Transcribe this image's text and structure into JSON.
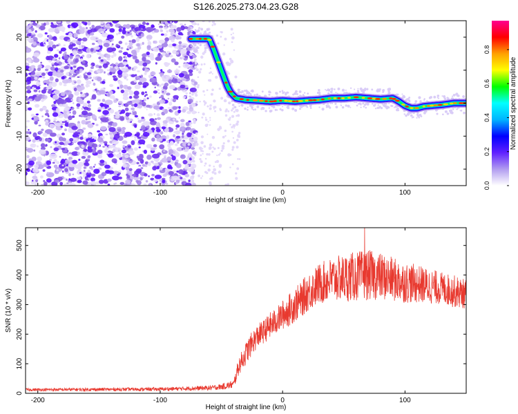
{
  "title": "S126.2025.273.04.23.G28",
  "chart_data": [
    {
      "type": "heatmap",
      "xlabel": "Height of straight line (km)",
      "ylabel": "Frequency (Hz)",
      "xlim": [
        -210,
        150
      ],
      "ylim": [
        -25,
        25
      ],
      "xticks": [
        -200,
        -100,
        0,
        100
      ],
      "yticks": [
        -20,
        -10,
        0,
        10,
        20
      ],
      "colorbar": {
        "label": "Normalized spectral amplitude",
        "range": [
          0.0,
          0.97
        ],
        "ticks": [
          0.0,
          0.2,
          0.4,
          0.6,
          0.8
        ],
        "tick_labels": [
          "0.0",
          "0.2",
          "0.4",
          "0.6",
          "0.8"
        ],
        "colors": [
          "#ffffff",
          "#b19cf0",
          "#6020ff",
          "#0000ff",
          "#00b4ff",
          "#00ffff",
          "#00ff00",
          "#ffff00",
          "#ffa000",
          "#ff0000",
          "#ff0090"
        ]
      },
      "ridge": {
        "x": [
          -75,
          -60,
          -57,
          -52,
          -48,
          -45,
          -42,
          -38,
          -30,
          -20,
          -10,
          0,
          10,
          20,
          30,
          40,
          50,
          60,
          70,
          80,
          90,
          95,
          100,
          105,
          110,
          115,
          120,
          130,
          140,
          150
        ],
        "y": [
          19.5,
          19.5,
          17,
          12,
          8,
          5,
          3,
          1.5,
          1,
          0.8,
          0.5,
          0.8,
          0.5,
          0.8,
          1,
          1.5,
          1.5,
          1.8,
          1.5,
          1.2,
          1.5,
          0.5,
          -0.8,
          -1.5,
          -1.5,
          -1,
          -0.8,
          -0.5,
          0,
          0
        ]
      },
      "noise_region": {
        "x_end": -75
      }
    },
    {
      "type": "line",
      "xlabel": "Height of straight line (km)",
      "ylabel": "SNR (10 * v/v)",
      "xlim": [
        -210,
        150
      ],
      "ylim": [
        0,
        560
      ],
      "xticks": [
        -200,
        -100,
        0,
        100
      ],
      "yticks": [
        0,
        100,
        200,
        300,
        400,
        500
      ],
      "color": "#e8392f",
      "envelope": {
        "x": [
          -210,
          -100,
          -60,
          -50,
          -40,
          -36,
          -32,
          -28,
          -24,
          -20,
          -15,
          -10,
          -5,
          0,
          5,
          10,
          15,
          20,
          30,
          40,
          50,
          60,
          70,
          80,
          90,
          100,
          110,
          120,
          130,
          140,
          150
        ],
        "mean": [
          12,
          14,
          18,
          22,
          30,
          90,
          120,
          150,
          175,
          195,
          210,
          230,
          245,
          265,
          280,
          300,
          315,
          340,
          370,
          385,
          390,
          395,
          400,
          395,
          385,
          375,
          370,
          362,
          355,
          345,
          335
        ],
        "amp": [
          5,
          6,
          8,
          10,
          14,
          30,
          35,
          40,
          40,
          40,
          40,
          45,
          45,
          50,
          55,
          60,
          60,
          65,
          70,
          75,
          80,
          85,
          85,
          80,
          75,
          70,
          65,
          60,
          55,
          55,
          50
        ]
      },
      "peak": {
        "x": 67,
        "y": 560
      }
    }
  ]
}
